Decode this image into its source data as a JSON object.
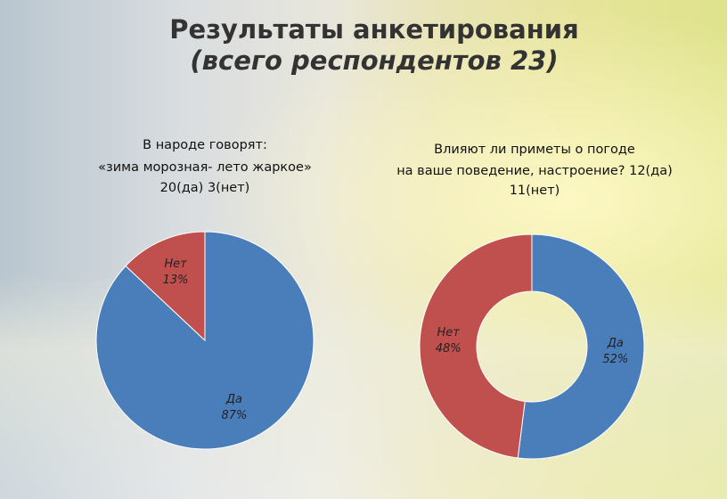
{
  "title": "Результаты анкетирования",
  "subtitle": "(всего респондентов 23)",
  "chart_data": [
    {
      "type": "pie",
      "title": [
        "В народе говорят:",
        "«зима морозная- лето жаркое»",
        "20(да) 3(нет)"
      ],
      "categories": [
        "Да",
        "Нет"
      ],
      "values": [
        87,
        13
      ],
      "value_labels": [
        "87%",
        "13%"
      ],
      "colors": [
        "#4a7ebb",
        "#c0504d"
      ]
    },
    {
      "type": "donut",
      "title": [
        "Влияют ли приметы о погоде",
        "на ваше поведение, настроение? 12(да)",
        "11(нет)"
      ],
      "categories": [
        "Да",
        "Нет"
      ],
      "values": [
        52,
        48
      ],
      "value_labels": [
        "52%",
        "48%"
      ],
      "colors": [
        "#4a7ebb",
        "#c0504d"
      ]
    }
  ]
}
